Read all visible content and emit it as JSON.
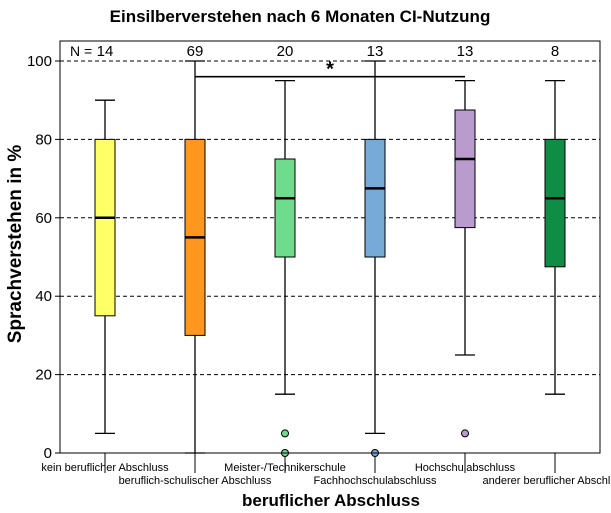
{
  "chart_data": {
    "type": "boxplot",
    "title": "Einsilberverstehen nach 6 Monaten CI-Nutzung",
    "xlabel": "beruflicher Abschluss",
    "ylabel": "Sprachverstehen in %",
    "ylim": [
      0,
      100
    ],
    "yticks": [
      0,
      20,
      40,
      60,
      80,
      100
    ],
    "grid": "horizontal dashed at 20, 40, 60, 80, 100",
    "n_label": "N =",
    "significance_marker": "*",
    "significance_between": [
      "beruflich-schulischer Abschluss",
      "Hochschulabschluss"
    ],
    "categories": [
      "kein beruflicher Abschluss",
      "beruflich-schulischer Abschluss",
      "Meister-/Technikerschule",
      "Fachhochschulabschluss",
      "Hochschulabschluss",
      "anderer beruflicher Abschluss"
    ],
    "label_rows": [
      "top",
      "bottom",
      "top",
      "bottom",
      "top",
      "bottom"
    ],
    "n": [
      "14",
      "69",
      "20",
      "13",
      "13",
      "8"
    ],
    "colors": [
      "#ffff66",
      "#ff961e",
      "#6edc8c",
      "#78aad7",
      "#b99bcd",
      "#0f8c46"
    ],
    "boxes": [
      {
        "whisker_low": 5,
        "q1": 35,
        "median": 60,
        "q3": 80,
        "whisker_high": 90,
        "outliers": []
      },
      {
        "whisker_low": 0,
        "q1": 30,
        "median": 55,
        "q3": 80,
        "whisker_high": 100,
        "outliers": []
      },
      {
        "whisker_low": 15,
        "q1": 50,
        "median": 65,
        "q3": 75,
        "whisker_high": 95,
        "outliers": [
          5,
          0
        ]
      },
      {
        "whisker_low": 5,
        "q1": 50,
        "median": 67.5,
        "q3": 80,
        "whisker_high": 100,
        "outliers": [
          0
        ]
      },
      {
        "whisker_low": 25,
        "q1": 57.5,
        "median": 75,
        "q3": 87.5,
        "whisker_high": 95,
        "outliers": [
          5
        ]
      },
      {
        "whisker_low": 15,
        "q1": 47.5,
        "median": 65,
        "q3": 80,
        "whisker_high": 95,
        "outliers": []
      }
    ]
  }
}
